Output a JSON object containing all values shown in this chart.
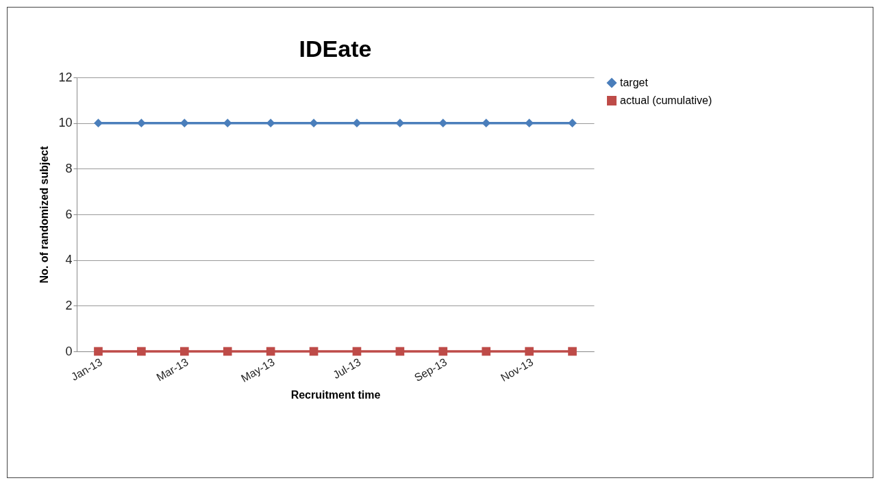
{
  "chart_data": {
    "type": "line",
    "title": "IDEate",
    "xlabel": "Recruitment time",
    "ylabel": "No. of randomized subject",
    "categories": [
      "Jan-13",
      null,
      "Mar-13",
      null,
      "May-13",
      null,
      "Jul-13",
      null,
      "Sep-13",
      null,
      "Nov-13",
      null
    ],
    "series": [
      {
        "name": "target",
        "color": "#4a7ebb",
        "marker": "diamond",
        "values": [
          10,
          10,
          10,
          10,
          10,
          10,
          10,
          10,
          10,
          10,
          10,
          10
        ]
      },
      {
        "name": "actual (cumulative)",
        "color": "#be4b48",
        "marker": "square",
        "values": [
          0,
          0,
          0,
          0,
          0,
          0,
          0,
          0,
          0,
          0,
          0,
          0
        ]
      }
    ],
    "ylim": [
      0,
      12
    ],
    "yticks": [
      0,
      2,
      4,
      6,
      8,
      10,
      12
    ],
    "grid": "y",
    "legend": "right",
    "line_style": "solid"
  }
}
